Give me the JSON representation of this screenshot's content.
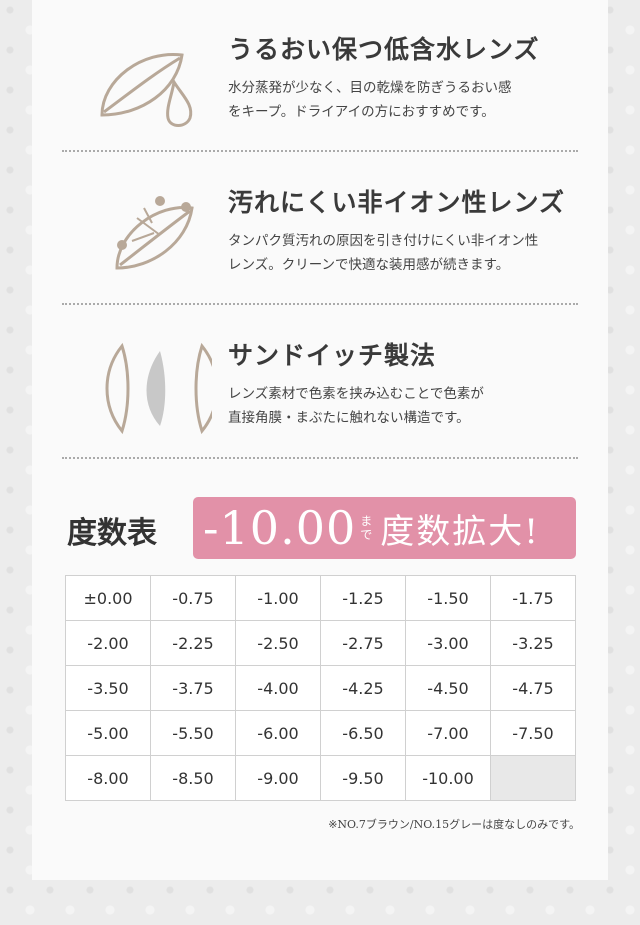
{
  "features": [
    {
      "title": "うるおい保つ低含水レンズ",
      "desc": [
        "水分蒸発が少なく、目の乾燥を防ぎうるおい感",
        "をキープ。ドライアイの方におすすめです。"
      ],
      "icon": "lens-droplet-icon"
    },
    {
      "title": "汚れにくい非イオン性レンズ",
      "desc": [
        "タンパク質汚れの原因を引き付けにくい非イオン性",
        "レンズ。クリーンで快適な装用感が続きます。"
      ],
      "icon": "lens-dirt-repel-icon"
    },
    {
      "title": "サンドイッチ製法",
      "desc": [
        "レンズ素材で色素を挟み込むことで色素が",
        "直接角膜・まぶたに触れない構造です。"
      ],
      "icon": "lens-sandwich-icon"
    }
  ],
  "power_table": {
    "title": "度数表",
    "banner": {
      "value": "-10.00",
      "made": "まで",
      "text": "度数拡大!"
    },
    "rows": [
      [
        "±0.00",
        "-0.75",
        "-1.00",
        "-1.25",
        "-1.50",
        "-1.75"
      ],
      [
        "-2.00",
        "-2.25",
        "-2.50",
        "-2.75",
        "-3.00",
        "-3.25"
      ],
      [
        "-3.50",
        "-3.75",
        "-4.00",
        "-4.25",
        "-4.50",
        "-4.75"
      ],
      [
        "-5.00",
        "-5.50",
        "-6.00",
        "-6.50",
        "-7.00",
        "-7.50"
      ],
      [
        "-8.00",
        "-8.50",
        "-9.00",
        "-9.50",
        "-10.00",
        ""
      ]
    ],
    "note": "※NO.7ブラウン/NO.15グレーは度なしのみです。"
  },
  "colors": {
    "accent": "#e291a8",
    "icon_stroke": "#b8a898"
  }
}
